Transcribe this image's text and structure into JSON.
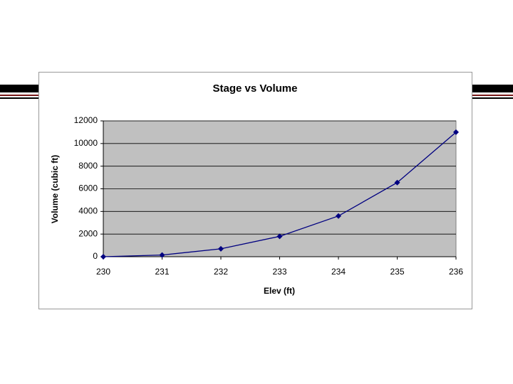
{
  "chart_data": {
    "type": "line",
    "title": "Stage vs Volume",
    "x_label": "Elev (ft)",
    "y_label": "Volume (cubic ft)",
    "x": [
      230,
      231,
      232,
      233,
      234,
      235,
      236
    ],
    "series": [
      {
        "name": "Volume",
        "color": "#000080",
        "values": [
          0,
          150,
          700,
          1800,
          3600,
          6550,
          11000
        ]
      }
    ],
    "xlim": [
      230,
      236
    ],
    "xticks": [
      230,
      231,
      232,
      233,
      234,
      235,
      236
    ],
    "ylim": [
      0,
      12000
    ],
    "yticks": [
      0,
      2000,
      4000,
      6000,
      8000,
      10000,
      12000
    ],
    "grid": true,
    "plot_background": "#c0c0c0"
  }
}
